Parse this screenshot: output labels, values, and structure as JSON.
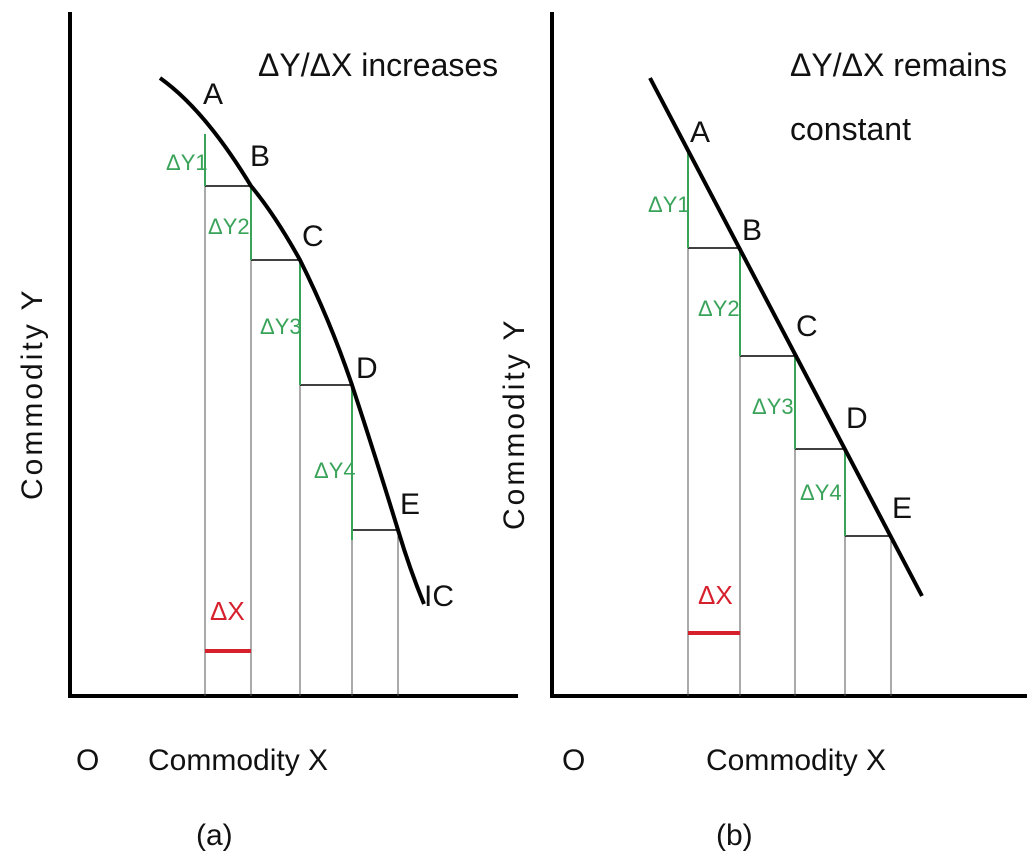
{
  "panels": [
    {
      "id": "a",
      "note": "ΔY/ΔX increases",
      "note_line2": "",
      "ylabel": "Commodity Y",
      "xlabel": "Commodity X",
      "origin": "O",
      "caption": "(a)",
      "curve_label": "IC",
      "points": [
        "A",
        "B",
        "C",
        "D",
        "E"
      ],
      "dy_labels": [
        "ΔY1",
        "ΔY2",
        "ΔY3",
        "ΔY4"
      ],
      "dx_label": "ΔX",
      "colors": {
        "dy": "#3aa35a",
        "dx": "#d6202c",
        "curve": "#000000"
      }
    },
    {
      "id": "b",
      "note": "ΔY/ΔX remains",
      "note_line2": "constant",
      "ylabel": "Commodity Y",
      "xlabel": "Commodity X",
      "origin": "O",
      "caption": "(b)",
      "points": [
        "A",
        "B",
        "C",
        "D",
        "E"
      ],
      "dy_labels": [
        "ΔY1",
        "ΔY2",
        "ΔY3",
        "ΔY4"
      ],
      "dx_label": "ΔX",
      "colors": {
        "dy": "#3aa35a",
        "dx": "#d6202c",
        "curve": "#000000"
      }
    }
  ]
}
